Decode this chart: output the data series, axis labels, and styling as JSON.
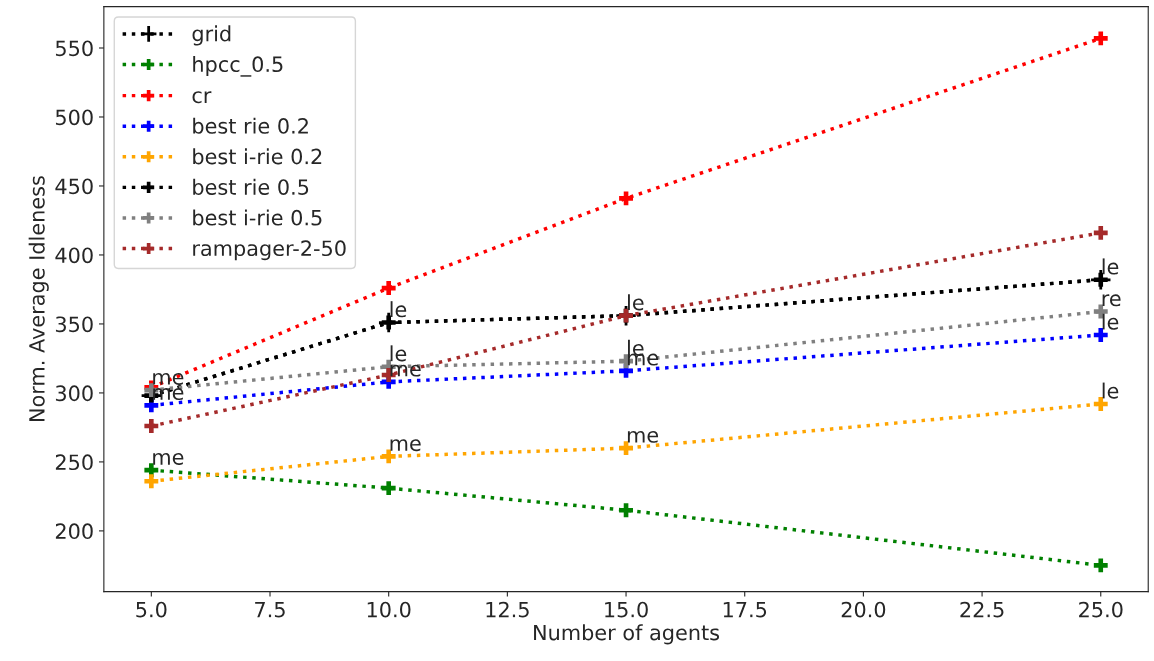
{
  "chart_data": {
    "type": "line",
    "xlabel": "Number of agents",
    "ylabel": "Norm. Average Idleness",
    "x": [
      5,
      10,
      15,
      25
    ],
    "series": [
      {
        "name": "grid",
        "color": "#000000",
        "values": [
          298,
          351,
          356,
          382
        ],
        "marker": "plus"
      },
      {
        "name": "hpcc_0.5",
        "color": "#008000",
        "values": [
          244,
          231,
          215,
          175
        ]
      },
      {
        "name": "cr",
        "color": "#ff0000",
        "values": [
          304,
          376,
          441,
          557
        ]
      },
      {
        "name": "best rie 0.2",
        "color": "#0000ff",
        "values": [
          291,
          308,
          316,
          342
        ]
      },
      {
        "name": "best i-rie 0.2",
        "color": "#ffa500",
        "values": [
          236,
          254,
          260,
          292
        ]
      },
      {
        "name": "best rie 0.5",
        "color": "#000000",
        "values": [
          298,
          351,
          356,
          382
        ]
      },
      {
        "name": "best i-rie 0.5",
        "color": "#808080",
        "values": [
          302,
          319,
          323,
          359
        ]
      },
      {
        "name": "rampager-2-50",
        "color": "#a52a2a",
        "values": [
          276,
          313,
          356,
          416
        ]
      }
    ],
    "annotations": [
      {
        "text": "me",
        "x": 5,
        "y": 302
      },
      {
        "text": "me",
        "x": 5,
        "y": 291
      },
      {
        "text": "me",
        "x": 5,
        "y": 244
      },
      {
        "text": "le",
        "x": 10,
        "y": 351
      },
      {
        "text": "le",
        "x": 10,
        "y": 319
      },
      {
        "text": "me",
        "x": 10,
        "y": 308
      },
      {
        "text": "me",
        "x": 10,
        "y": 254
      },
      {
        "text": "le",
        "x": 15,
        "y": 356
      },
      {
        "text": "le",
        "x": 15,
        "y": 323
      },
      {
        "text": "me",
        "x": 15,
        "y": 316
      },
      {
        "text": "me",
        "x": 15,
        "y": 260
      },
      {
        "text": "le",
        "x": 25,
        "y": 382
      },
      {
        "text": "re",
        "x": 25,
        "y": 359
      },
      {
        "text": "le",
        "x": 25,
        "y": 342
      },
      {
        "text": "le",
        "x": 25,
        "y": 292
      }
    ],
    "xlim": [
      4,
      26
    ],
    "ylim": [
      156,
      580
    ],
    "xticks": [
      {
        "value": 5,
        "label": "5.0"
      },
      {
        "value": 7.5,
        "label": "7.5"
      },
      {
        "value": 10,
        "label": "10.0"
      },
      {
        "value": 12.5,
        "label": "12.5"
      },
      {
        "value": 15,
        "label": "15.0"
      },
      {
        "value": 17.5,
        "label": "17.5"
      },
      {
        "value": 20,
        "label": "20.0"
      },
      {
        "value": 22.5,
        "label": "22.5"
      },
      {
        "value": 25,
        "label": "25.0"
      }
    ],
    "yticks": [
      200,
      250,
      300,
      350,
      400,
      450,
      500,
      550
    ],
    "marker": "cross",
    "line_style": "dotted",
    "legend": "top left",
    "grid": false
  }
}
